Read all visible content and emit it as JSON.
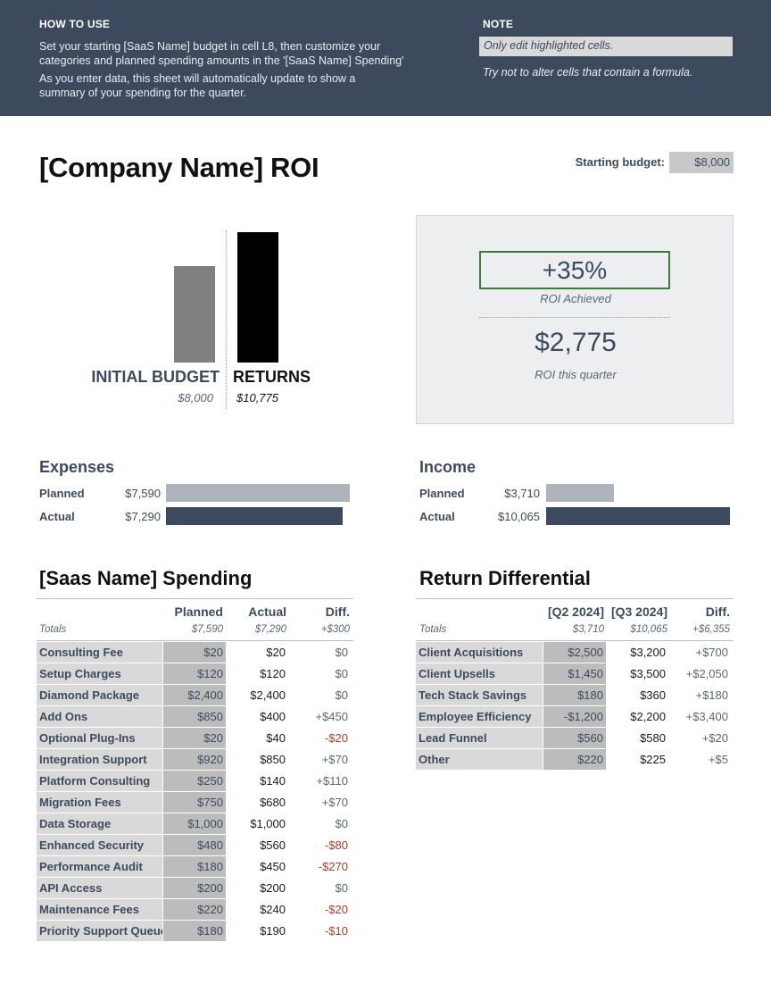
{
  "banner": {
    "how_to_use": {
      "heading": "HOW TO USE",
      "line1": "Set your starting [SaaS Name]  budget in cell L8, then customize your categories and planned spending amounts in the '[SaaS Name] Spending'",
      "line2": "As you enter data, this sheet will automatically update to show a summary of your spending for the quarter."
    },
    "note": {
      "heading": "NOTE",
      "highlighted": "Only edit highlighted cells.",
      "formula": "Try not to alter cells that contain a formula."
    }
  },
  "title": "[Company Name] ROI",
  "starting_budget": {
    "label": "Starting budget:",
    "value": "$8,000"
  },
  "chart_data": {
    "type": "bar",
    "categories": [
      "INITIAL BUDGET",
      "RETURNS"
    ],
    "values": [
      8000,
      10775
    ],
    "value_labels": [
      "$8,000",
      "$10,775"
    ],
    "colors": [
      "#808080",
      "#000000"
    ]
  },
  "roi": {
    "percent": "+35%",
    "percent_label": "ROI Achieved",
    "amount": "$2,775",
    "amount_label": "ROI this quarter"
  },
  "expenses": {
    "heading": "Expenses",
    "planned_label": "Planned",
    "planned_value": "$7,590",
    "planned_amount": 7590,
    "actual_label": "Actual",
    "actual_value": "$7,290",
    "actual_amount": 7290
  },
  "income": {
    "heading": "Income",
    "planned_label": "Planned",
    "planned_value": "$3,710",
    "planned_amount": 3710,
    "actual_label": "Actual",
    "actual_value": "$10,065",
    "actual_amount": 10065
  },
  "spending": {
    "title": "[Saas Name] Spending",
    "headers": {
      "planned": "Planned",
      "actual": "Actual",
      "diff": "Diff."
    },
    "totals": {
      "label": "Totals",
      "planned": "$7,590",
      "actual": "$7,290",
      "diff": "+$300"
    },
    "rows": [
      {
        "name": "Consulting Fee",
        "planned": "$20",
        "actual": "$20",
        "diff": "$0"
      },
      {
        "name": "Setup Charges",
        "planned": "$120",
        "actual": "$120",
        "diff": "$0"
      },
      {
        "name": "Diamond Package",
        "planned": "$2,400",
        "actual": "$2,400",
        "diff": "$0"
      },
      {
        "name": "Add Ons",
        "planned": "$850",
        "actual": "$400",
        "diff": "+$450"
      },
      {
        "name": "Optional Plug-Ins",
        "planned": "$20",
        "actual": "$40",
        "diff": "-$20"
      },
      {
        "name": "Integration Support",
        "planned": "$920",
        "actual": "$850",
        "diff": "+$70"
      },
      {
        "name": "Platform Consulting",
        "planned": "$250",
        "actual": "$140",
        "diff": "+$110"
      },
      {
        "name": "Migration Fees",
        "planned": "$750",
        "actual": "$680",
        "diff": "+$70"
      },
      {
        "name": "Data Storage",
        "planned": "$1,000",
        "actual": "$1,000",
        "diff": "$0"
      },
      {
        "name": "Enhanced Security",
        "planned": "$480",
        "actual": "$560",
        "diff": "-$80"
      },
      {
        "name": "Performance Audit",
        "planned": "$180",
        "actual": "$450",
        "diff": "-$270"
      },
      {
        "name": "API Access",
        "planned": "$200",
        "actual": "$200",
        "diff": "$0"
      },
      {
        "name": "Maintenance Fees",
        "planned": "$220",
        "actual": "$240",
        "diff": "-$20"
      },
      {
        "name": "Priority Support Queue",
        "planned": "$180",
        "actual": "$190",
        "diff": "-$10"
      }
    ]
  },
  "returns": {
    "title": "Return Differential",
    "headers": {
      "q2": "[Q2 2024]",
      "q3": "[Q3 2024]",
      "diff": "Diff."
    },
    "totals": {
      "label": "Totals",
      "q2": "$3,710",
      "q3": "$10,065",
      "diff": "+$6,355"
    },
    "rows": [
      {
        "name": "Client Acquisitions",
        "q2": "$2,500",
        "q3": "$3,200",
        "diff": "+$700"
      },
      {
        "name": "Client Upsells",
        "q2": "$1,450",
        "q3": "$3,500",
        "diff": "+$2,050"
      },
      {
        "name": "Tech Stack Savings",
        "q2": "$180",
        "q3": "$360",
        "diff": "+$180"
      },
      {
        "name": "Employee Efficiency",
        "q2": "-$1,200",
        "q3": "$2,200",
        "diff": "+$3,400"
      },
      {
        "name": "Lead Funnel",
        "q2": "$560",
        "q3": "$580",
        "diff": "+$20"
      },
      {
        "name": "Other",
        "q2": "$220",
        "q3": "$225",
        "diff": "+$5"
      }
    ]
  }
}
